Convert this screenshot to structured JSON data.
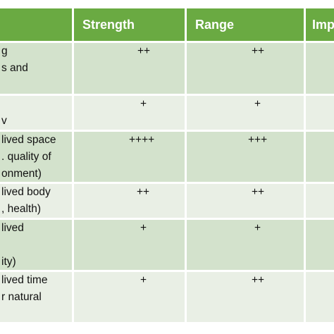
{
  "table": {
    "header": [
      "Strength",
      "Range",
      "Imp"
    ],
    "rows": [
      {
        "label": [
          "g",
          "s and"
        ],
        "cells": [
          "++",
          "++"
        ]
      },
      {
        "label": [
          "v"
        ],
        "cells": [
          "+",
          "+"
        ]
      },
      {
        "label": [
          "lived space",
          ". quality of",
          "onment)"
        ],
        "cells": [
          "++++",
          "+++"
        ]
      },
      {
        "label": [
          "lived body",
          ", health)"
        ],
        "cells": [
          "++",
          "++"
        ]
      },
      {
        "label": [
          "lived",
          "ity)"
        ],
        "cells": [
          "+",
          "+"
        ]
      },
      {
        "label": [
          "lived time",
          "r natural"
        ],
        "cells": [
          "+",
          "++"
        ]
      }
    ]
  }
}
